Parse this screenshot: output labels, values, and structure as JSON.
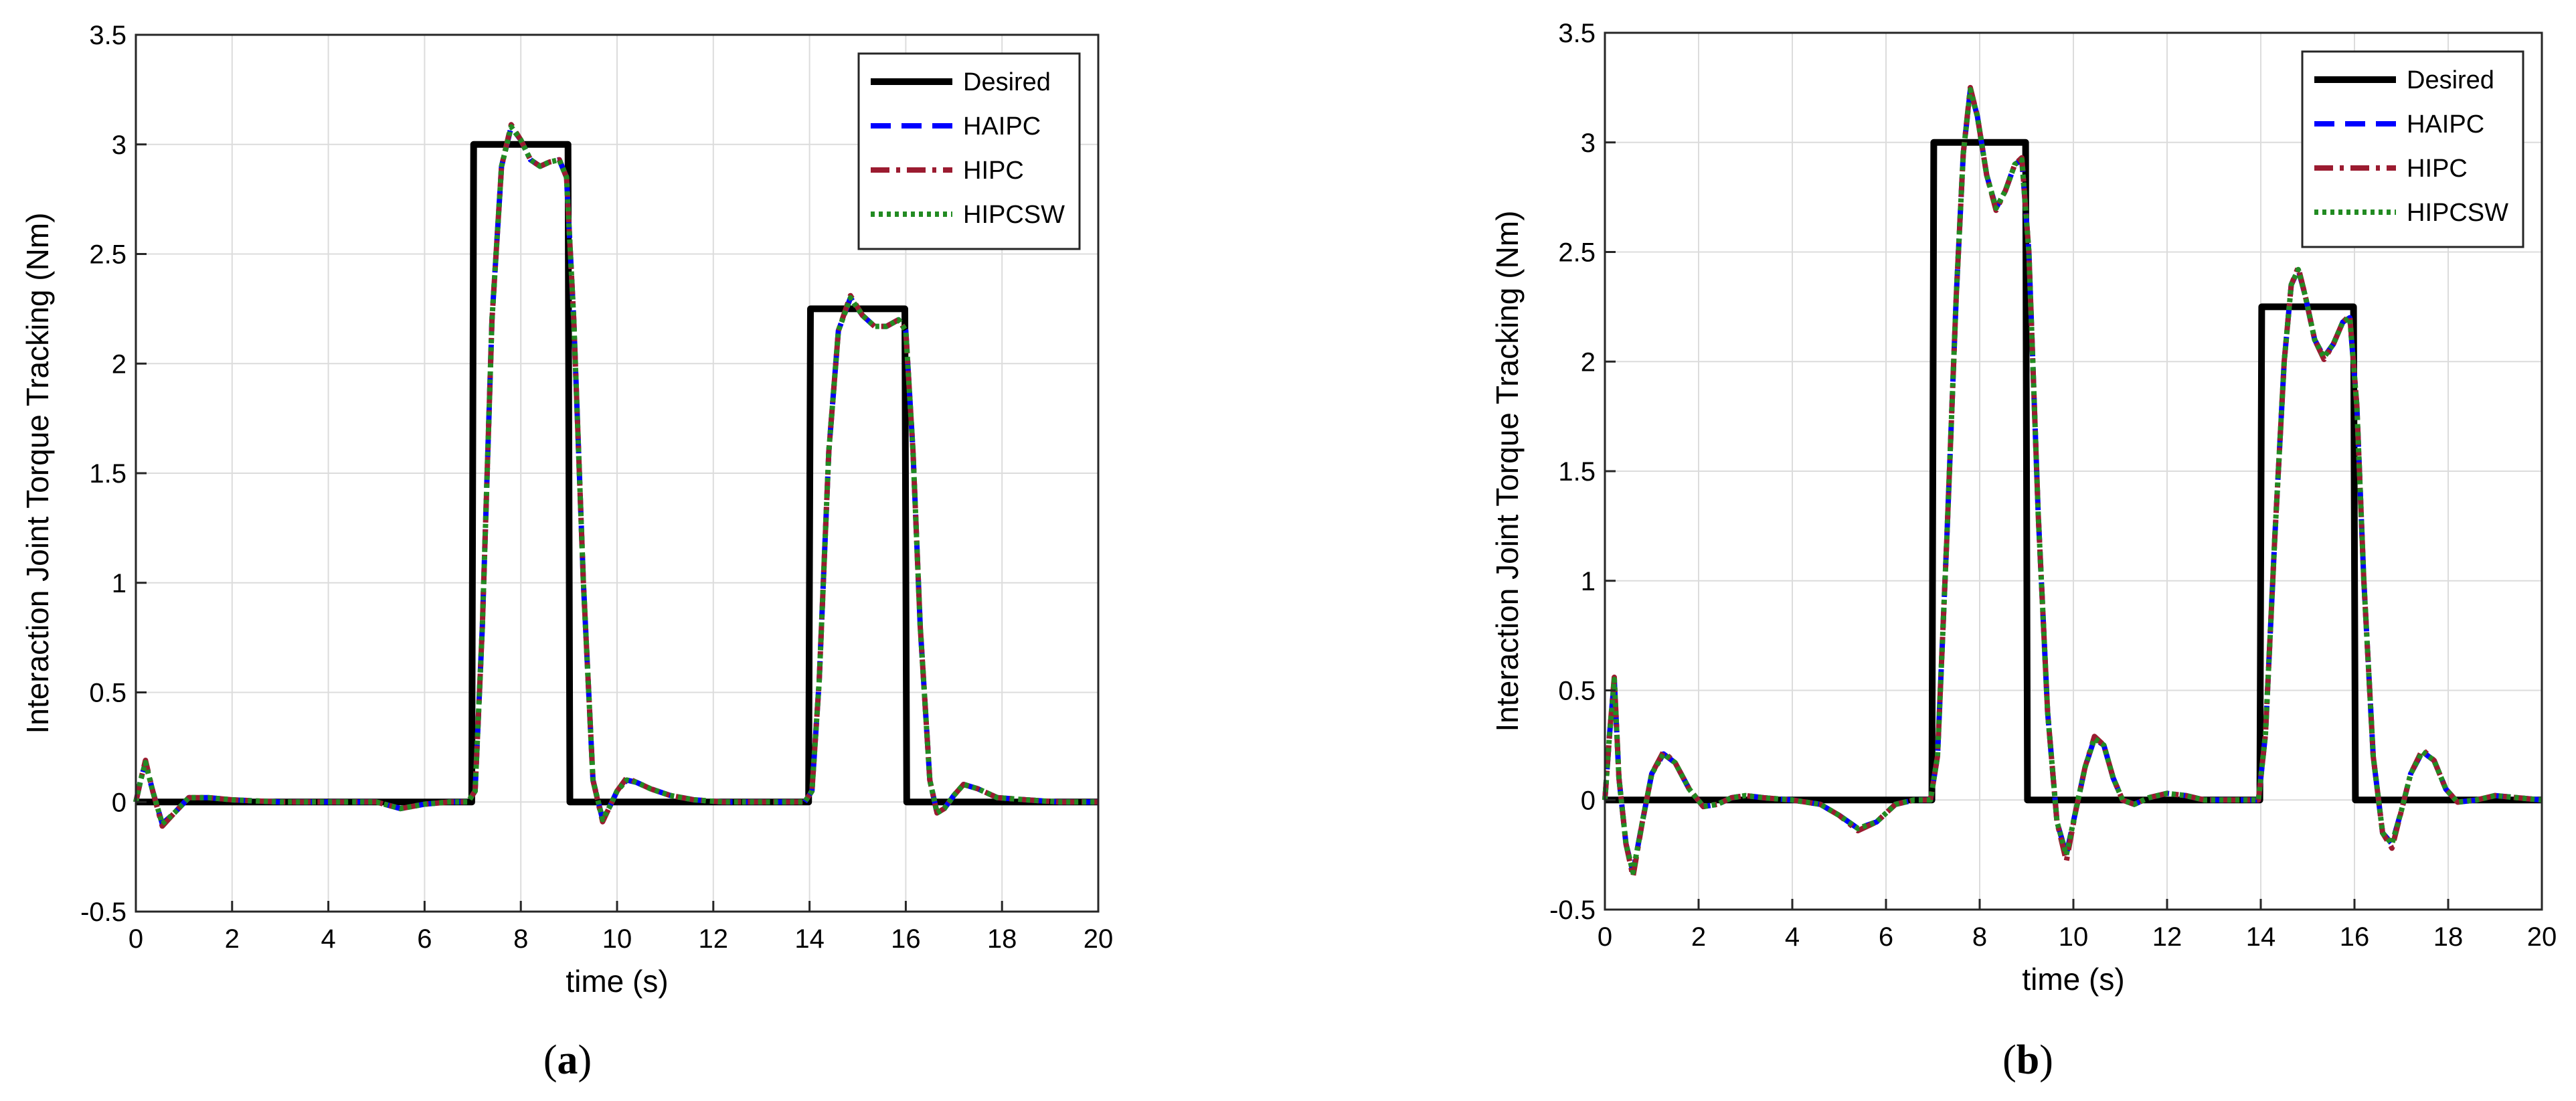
{
  "chart_data": [
    {
      "type": "line",
      "panel_label": "a",
      "xlabel": "time (s)",
      "ylabel": "Interaction Joint Torque Tracking (Nm)",
      "xlim": [
        0,
        20
      ],
      "ylim": [
        -0.5,
        3.5
      ],
      "xticks": [
        0,
        2,
        4,
        6,
        8,
        10,
        12,
        14,
        16,
        18,
        20
      ],
      "yticks": [
        -0.5,
        0,
        0.5,
        1,
        1.5,
        2,
        2.5,
        3,
        3.5
      ],
      "xtick_labels": [
        "0",
        "2",
        "4",
        "6",
        "8",
        "10",
        "12",
        "14",
        "16",
        "18",
        "20"
      ],
      "ytick_labels": [
        "-0.5",
        "0",
        "0.5",
        "1",
        "1.5",
        "2",
        "2.5",
        "3",
        "3.5"
      ],
      "grid": true,
      "legend_position": "top-right",
      "series": [
        {
          "name": "Desired",
          "color": "#000000",
          "style": "solid",
          "x": [
            0,
            6.98,
            7.02,
            8.98,
            9.02,
            13.98,
            14.02,
            15.98,
            16.02,
            20
          ],
          "y": [
            0,
            0,
            3,
            3,
            0,
            0,
            2.25,
            2.25,
            0,
            0
          ]
        },
        {
          "name": "HAIPC",
          "color": "#0000ff",
          "style": "dashed",
          "x": [
            0,
            0.1,
            0.2,
            0.35,
            0.55,
            0.8,
            1.1,
            1.5,
            2,
            3,
            4,
            5,
            5.5,
            6,
            6.5,
            6.9,
            7.05,
            7.2,
            7.4,
            7.6,
            7.8,
            8.0,
            8.2,
            8.4,
            8.6,
            8.8,
            8.95,
            9.1,
            9.3,
            9.5,
            9.7,
            9.85,
            10.0,
            10.2,
            10.4,
            10.7,
            11.1,
            11.6,
            12.2,
            13,
            13.9,
            14.05,
            14.2,
            14.4,
            14.6,
            14.85,
            15.1,
            15.35,
            15.6,
            15.85,
            16.0,
            16.15,
            16.3,
            16.5,
            16.65,
            16.8,
            17.0,
            17.2,
            17.5,
            17.9,
            18.5,
            19.2,
            20
          ],
          "y": [
            0,
            0.1,
            0.18,
            0.05,
            -0.1,
            -0.05,
            0.02,
            0.02,
            0.01,
            0,
            0,
            0,
            -0.03,
            -0.01,
            0,
            0,
            0.05,
            0.8,
            2.2,
            2.9,
            3.08,
            3.02,
            2.93,
            2.9,
            2.92,
            2.93,
            2.85,
            2.2,
            1.0,
            0.1,
            -0.08,
            -0.02,
            0.05,
            0.1,
            0.09,
            0.06,
            0.03,
            0.01,
            0,
            0,
            0,
            0.05,
            0.55,
            1.6,
            2.15,
            2.3,
            2.22,
            2.17,
            2.17,
            2.2,
            2.15,
            1.6,
            0.8,
            0.1,
            -0.05,
            -0.03,
            0.03,
            0.08,
            0.06,
            0.02,
            0.01,
            0,
            0
          ]
        },
        {
          "name": "HIPC",
          "color": "#9b1b30",
          "style": "dashdot",
          "x": [
            0,
            0.1,
            0.2,
            0.35,
            0.55,
            0.8,
            1.1,
            1.5,
            2,
            3,
            4,
            5,
            5.5,
            6,
            6.5,
            6.9,
            7.05,
            7.2,
            7.4,
            7.6,
            7.8,
            8.0,
            8.2,
            8.4,
            8.6,
            8.8,
            8.95,
            9.1,
            9.3,
            9.5,
            9.7,
            9.85,
            10.0,
            10.2,
            10.4,
            10.7,
            11.1,
            11.6,
            12.2,
            13,
            13.9,
            14.05,
            14.2,
            14.4,
            14.6,
            14.85,
            15.1,
            15.35,
            15.6,
            15.85,
            16.0,
            16.15,
            16.3,
            16.5,
            16.65,
            16.8,
            17.0,
            17.2,
            17.5,
            17.9,
            18.5,
            19.2,
            20
          ],
          "y": [
            0,
            0.1,
            0.19,
            0.05,
            -0.11,
            -0.05,
            0.02,
            0.02,
            0.01,
            0,
            0,
            0,
            -0.03,
            -0.01,
            0,
            0,
            0.05,
            0.8,
            2.2,
            2.9,
            3.09,
            3.02,
            2.93,
            2.9,
            2.92,
            2.93,
            2.85,
            2.2,
            1.0,
            0.1,
            -0.09,
            -0.02,
            0.05,
            0.11,
            0.09,
            0.06,
            0.03,
            0.01,
            0,
            0,
            0,
            0.05,
            0.55,
            1.6,
            2.15,
            2.31,
            2.22,
            2.17,
            2.17,
            2.2,
            2.15,
            1.6,
            0.8,
            0.1,
            -0.05,
            -0.03,
            0.03,
            0.08,
            0.06,
            0.02,
            0.01,
            0,
            0
          ]
        },
        {
          "name": "HIPCSW",
          "color": "#228b22",
          "style": "dotted",
          "x": [
            0,
            0.1,
            0.2,
            0.35,
            0.55,
            0.8,
            1.1,
            1.5,
            2,
            3,
            4,
            5,
            5.5,
            6,
            6.5,
            6.9,
            7.05,
            7.2,
            7.4,
            7.6,
            7.8,
            8.0,
            8.2,
            8.4,
            8.6,
            8.8,
            8.95,
            9.1,
            9.3,
            9.5,
            9.7,
            9.85,
            10.0,
            10.2,
            10.4,
            10.7,
            11.1,
            11.6,
            12.2,
            13,
            13.9,
            14.05,
            14.2,
            14.4,
            14.6,
            14.85,
            15.1,
            15.35,
            15.6,
            15.85,
            16.0,
            16.15,
            16.3,
            16.5,
            16.65,
            16.8,
            17.0,
            17.2,
            17.5,
            17.9,
            18.5,
            19.2,
            20
          ],
          "y": [
            0,
            0.1,
            0.18,
            0.05,
            -0.1,
            -0.05,
            0.02,
            0.02,
            0.01,
            0,
            0,
            0,
            -0.03,
            -0.01,
            0,
            0,
            0.05,
            0.8,
            2.2,
            2.9,
            3.08,
            3.02,
            2.93,
            2.9,
            2.92,
            2.93,
            2.85,
            2.2,
            1.0,
            0.1,
            -0.08,
            -0.02,
            0.05,
            0.1,
            0.09,
            0.06,
            0.03,
            0.01,
            0,
            0,
            0,
            0.05,
            0.55,
            1.6,
            2.15,
            2.3,
            2.22,
            2.17,
            2.17,
            2.2,
            2.15,
            1.6,
            0.8,
            0.1,
            -0.05,
            -0.03,
            0.03,
            0.08,
            0.06,
            0.02,
            0.01,
            0,
            0
          ]
        }
      ]
    },
    {
      "type": "line",
      "panel_label": "b",
      "xlabel": "time (s)",
      "ylabel": "Interaction Joint Torque Tracking (Nm)",
      "xlim": [
        0,
        20
      ],
      "ylim": [
        -0.5,
        3.5
      ],
      "xticks": [
        0,
        2,
        4,
        6,
        8,
        10,
        12,
        14,
        16,
        18,
        20
      ],
      "yticks": [
        -0.5,
        0,
        0.5,
        1,
        1.5,
        2,
        2.5,
        3,
        3.5
      ],
      "xtick_labels": [
        "0",
        "2",
        "4",
        "6",
        "8",
        "10",
        "12",
        "14",
        "16",
        "18",
        "20"
      ],
      "ytick_labels": [
        "-0.5",
        "0",
        "0.5",
        "1",
        "1.5",
        "2",
        "2.5",
        "3",
        "3.5"
      ],
      "grid": true,
      "legend_position": "top-right",
      "series": [
        {
          "name": "Desired",
          "color": "#000000",
          "style": "solid",
          "x": [
            0,
            6.98,
            7.02,
            8.98,
            9.02,
            13.98,
            14.02,
            15.98,
            16.02,
            20
          ],
          "y": [
            0,
            0,
            3,
            3,
            0,
            0,
            2.25,
            2.25,
            0,
            0
          ]
        },
        {
          "name": "HAIPC",
          "color": "#0000ff",
          "style": "dashed",
          "x": [
            0,
            0.1,
            0.2,
            0.3,
            0.45,
            0.6,
            0.8,
            1.0,
            1.25,
            1.5,
            1.8,
            2.1,
            2.4,
            2.7,
            3.0,
            3.4,
            4.0,
            4.6,
            5.0,
            5.4,
            5.8,
            6.2,
            6.6,
            6.95,
            7.1,
            7.3,
            7.5,
            7.65,
            7.8,
            7.95,
            8.15,
            8.35,
            8.55,
            8.75,
            8.9,
            9.05,
            9.25,
            9.45,
            9.65,
            9.85,
            10.05,
            10.25,
            10.45,
            10.65,
            10.85,
            11.05,
            11.3,
            11.6,
            12.0,
            12.4,
            12.8,
            13.3,
            13.95,
            14.1,
            14.3,
            14.5,
            14.65,
            14.8,
            14.95,
            15.15,
            15.35,
            15.55,
            15.75,
            15.9,
            16.05,
            16.2,
            16.4,
            16.6,
            16.8,
            17.0,
            17.2,
            17.45,
            17.7,
            17.95,
            18.2,
            18.6,
            19.0,
            19.5,
            20
          ],
          "y": [
            0,
            0.3,
            0.55,
            0.1,
            -0.2,
            -0.33,
            -0.1,
            0.12,
            0.21,
            0.17,
            0.05,
            -0.03,
            -0.02,
            0.01,
            0.02,
            0.01,
            0,
            -0.02,
            -0.07,
            -0.13,
            -0.1,
            -0.02,
            0,
            0,
            0.2,
            1.2,
            2.3,
            2.95,
            3.24,
            3.12,
            2.85,
            2.7,
            2.78,
            2.9,
            2.92,
            2.5,
            1.3,
            0.4,
            -0.1,
            -0.25,
            -0.05,
            0.15,
            0.28,
            0.25,
            0.1,
            0,
            -0.02,
            0.01,
            0.03,
            0.02,
            0,
            0,
            0,
            0.3,
            1.2,
            2.0,
            2.35,
            2.42,
            2.3,
            2.1,
            2.02,
            2.08,
            2.18,
            2.2,
            1.8,
            1.0,
            0.2,
            -0.15,
            -0.2,
            -0.05,
            0.12,
            0.22,
            0.18,
            0.05,
            -0.01,
            0,
            0.02,
            0.01,
            0
          ]
        },
        {
          "name": "HIPC",
          "color": "#9b1b30",
          "style": "dashdot",
          "x": [
            0,
            0.1,
            0.2,
            0.3,
            0.45,
            0.6,
            0.8,
            1.0,
            1.25,
            1.5,
            1.8,
            2.1,
            2.4,
            2.7,
            3.0,
            3.4,
            4.0,
            4.6,
            5.0,
            5.4,
            5.8,
            6.2,
            6.6,
            6.95,
            7.1,
            7.3,
            7.5,
            7.65,
            7.8,
            7.95,
            8.15,
            8.35,
            8.55,
            8.75,
            8.9,
            9.05,
            9.25,
            9.45,
            9.65,
            9.85,
            10.05,
            10.25,
            10.45,
            10.65,
            10.85,
            11.05,
            11.3,
            11.6,
            12.0,
            12.4,
            12.8,
            13.3,
            13.95,
            14.1,
            14.3,
            14.5,
            14.65,
            14.8,
            14.95,
            15.15,
            15.35,
            15.55,
            15.75,
            15.9,
            16.05,
            16.2,
            16.4,
            16.6,
            16.8,
            17.0,
            17.2,
            17.45,
            17.7,
            17.95,
            18.2,
            18.6,
            19.0,
            19.5,
            20
          ],
          "y": [
            0,
            0.3,
            0.56,
            0.1,
            -0.2,
            -0.35,
            -0.1,
            0.12,
            0.22,
            0.17,
            0.05,
            -0.03,
            -0.02,
            0.01,
            0.02,
            0.01,
            0,
            -0.02,
            -0.07,
            -0.14,
            -0.1,
            -0.02,
            0,
            0,
            0.2,
            1.2,
            2.3,
            2.95,
            3.25,
            3.12,
            2.85,
            2.69,
            2.78,
            2.9,
            2.93,
            2.5,
            1.3,
            0.4,
            -0.1,
            -0.28,
            -0.05,
            0.15,
            0.29,
            0.25,
            0.1,
            0,
            -0.02,
            0.01,
            0.03,
            0.02,
            0,
            0,
            0,
            0.3,
            1.2,
            2.0,
            2.35,
            2.43,
            2.3,
            2.1,
            2.01,
            2.08,
            2.18,
            2.21,
            1.8,
            1.0,
            0.2,
            -0.15,
            -0.22,
            -0.05,
            0.12,
            0.23,
            0.18,
            0.05,
            -0.01,
            0,
            0.02,
            0.01,
            0
          ]
        },
        {
          "name": "HIPCSW",
          "color": "#228b22",
          "style": "dotted",
          "x": [
            0,
            0.1,
            0.2,
            0.3,
            0.45,
            0.6,
            0.8,
            1.0,
            1.25,
            1.5,
            1.8,
            2.1,
            2.4,
            2.7,
            3.0,
            3.4,
            4.0,
            4.6,
            5.0,
            5.4,
            5.8,
            6.2,
            6.6,
            6.95,
            7.1,
            7.3,
            7.5,
            7.65,
            7.8,
            7.95,
            8.15,
            8.35,
            8.55,
            8.75,
            8.9,
            9.05,
            9.25,
            9.45,
            9.65,
            9.85,
            10.05,
            10.25,
            10.45,
            10.65,
            10.85,
            11.05,
            11.3,
            11.6,
            12.0,
            12.4,
            12.8,
            13.3,
            13.95,
            14.1,
            14.3,
            14.5,
            14.65,
            14.8,
            14.95,
            15.15,
            15.35,
            15.55,
            15.75,
            15.9,
            16.05,
            16.2,
            16.4,
            16.6,
            16.8,
            17.0,
            17.2,
            17.45,
            17.7,
            17.95,
            18.2,
            18.6,
            19.0,
            19.5,
            20
          ],
          "y": [
            0,
            0.3,
            0.55,
            0.1,
            -0.2,
            -0.33,
            -0.1,
            0.12,
            0.21,
            0.17,
            0.05,
            -0.03,
            -0.02,
            0.01,
            0.02,
            0.01,
            0,
            -0.02,
            -0.07,
            -0.13,
            -0.1,
            -0.02,
            0,
            0,
            0.2,
            1.2,
            2.3,
            2.95,
            3.24,
            3.12,
            2.85,
            2.7,
            2.78,
            2.9,
            2.92,
            2.5,
            1.3,
            0.4,
            -0.1,
            -0.25,
            -0.05,
            0.15,
            0.28,
            0.25,
            0.1,
            0,
            -0.02,
            0.01,
            0.03,
            0.02,
            0,
            0,
            0,
            0.3,
            1.2,
            2.0,
            2.35,
            2.42,
            2.3,
            2.1,
            2.02,
            2.08,
            2.18,
            2.2,
            1.8,
            1.0,
            0.2,
            -0.15,
            -0.2,
            -0.05,
            0.12,
            0.22,
            0.18,
            0.05,
            -0.01,
            0,
            0.02,
            0.01,
            0
          ]
        }
      ]
    }
  ]
}
